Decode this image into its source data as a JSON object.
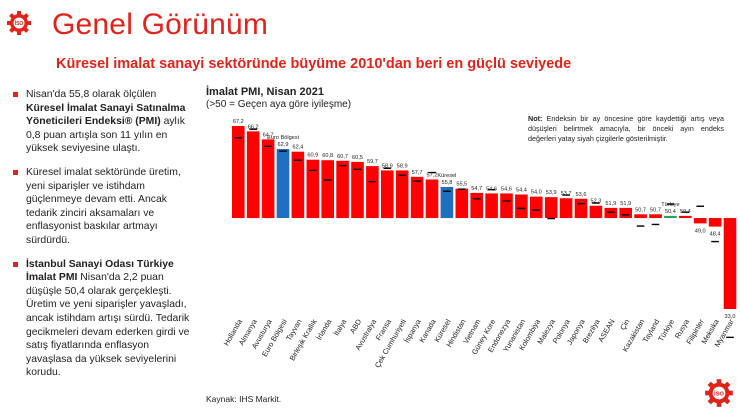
{
  "header": {
    "title": "Genel Görünüm",
    "subtitle": "Küresel imalat sanayi sektöründe büyüme 2010'dan beri en güçlü seviyede"
  },
  "bullets": [
    {
      "pre": "Nisan'da 55,8 olarak ölçülen ",
      "bold": "Küresel İmalat Sanayi Satınalma Yöneticileri Endeksi® (PMI)",
      "post": " aylık 0,8 puan artışla son 11 yılın en yüksek seviyesine ulaştı."
    },
    {
      "pre": "Küresel imalat sektöründe üretim, yeni siparişler ve istihdam güçlenmeye devam etti. Ancak tedarik zinciri aksamaları ve enflasyonist baskılar artmayı sürdürdü.",
      "bold": "",
      "post": ""
    },
    {
      "pre": "",
      "bold": "İstanbul Sanayi Odası Türkiye İmalat PMI",
      "post": " Nisan'da 2,2 puan düşüşle 50,4 olarak gerçekleşti. Üretim ve yeni siparişler yavaşladı, ancak istihdam artışı sürdü. Tedarik gecikmeleri devam ederken girdi ve satış fiyatlarında enflasyon yavaşlasa da yüksek seviyelerini korudu."
    }
  ],
  "note": {
    "label": "Not:",
    "text": " Endeksin bir ay öncesine göre kaydettiği artış veya düşüşleri belirtmek amacıyla, bir önceki ayın endeks değerleri yatay siyah çizgilerle gösterilmiştir."
  },
  "source": "Kaynak: IHS Markit.",
  "logo": {
    "text": "İSO"
  },
  "colors": {
    "accent": "#e2231a",
    "bar_default": "#ff0000",
    "bar_eurozone": "#1f6fc0",
    "bar_global": "#1f6fc0",
    "bar_turkey": "#2e9e5b",
    "prev_marker": "#000000"
  },
  "chart_data": {
    "type": "bar",
    "title": "İmalat PMI, Nisan 2021",
    "subtitle": "(>50 = Geçen aya göre iyileşme)",
    "ylim": [
      33,
      67.2
    ],
    "baseline": 50,
    "categories": [
      "Hollanda",
      "Almanya",
      "Avusturya",
      "Euro Bölgesi",
      "Tayvan",
      "Birleşik Krallık",
      "İrlanda",
      "İtalya",
      "ABD",
      "Avustralya",
      "Fransa",
      "Çek Cumhuriyeti",
      "İspanya",
      "Kanada",
      "Küresel",
      "Hindistan",
      "Vietnam",
      "Güney Kore",
      "Endonezya",
      "Yunanistan",
      "Kolombiya",
      "Malezya",
      "Polonya",
      "Japonya",
      "Brezilya",
      "ASEAN",
      "Çin",
      "Kazakistan",
      "Tayland",
      "Türkiye",
      "Rusya",
      "Filipinler",
      "Meksika",
      "Myanmar"
    ],
    "values": [
      67.2,
      66.2,
      64.7,
      62.9,
      62.4,
      60.9,
      60.8,
      60.7,
      60.5,
      59.7,
      58.9,
      58.9,
      57.7,
      57.2,
      55.8,
      55.5,
      54.7,
      54.6,
      54.6,
      54.4,
      54.0,
      53.9,
      53.7,
      53.6,
      52.3,
      51.9,
      51.9,
      50.7,
      50.7,
      50.4,
      50.4,
      49.0,
      48.4,
      33.0
    ],
    "value_labels": [
      "67,2",
      "66,2",
      "64,7",
      "62,9",
      "62,4",
      "60,9",
      "60,8",
      "60,7",
      "60,5",
      "59,7",
      "58,9",
      "58,9",
      "57,7",
      "57,2",
      "55,8",
      "55,5",
      "54,7",
      "54,6",
      "54,6",
      "54,4",
      "54,0",
      "53,9",
      "53,7",
      "53,6",
      "52,3",
      "51,9",
      "51,9",
      "50,7",
      "50,7",
      "50,4",
      "50,4",
      "49,0",
      "48,4",
      "33,0"
    ],
    "previous": [
      65.0,
      66.6,
      63.4,
      62.5,
      60.8,
      58.9,
      57.1,
      59.8,
      59.1,
      56.8,
      59.3,
      58.0,
      56.9,
      58.5,
      55.0,
      55.4,
      53.6,
      55.3,
      53.2,
      51.8,
      51.5,
      49.9,
      54.3,
      52.7,
      52.8,
      51.1,
      50.6,
      48.5,
      48.8,
      52.6,
      51.1,
      52.2,
      45.6,
      27.7
    ],
    "highlight": {
      "Euro Bölgesi": "eurozone",
      "Küresel": "global",
      "Türkiye": "turkey"
    }
  }
}
